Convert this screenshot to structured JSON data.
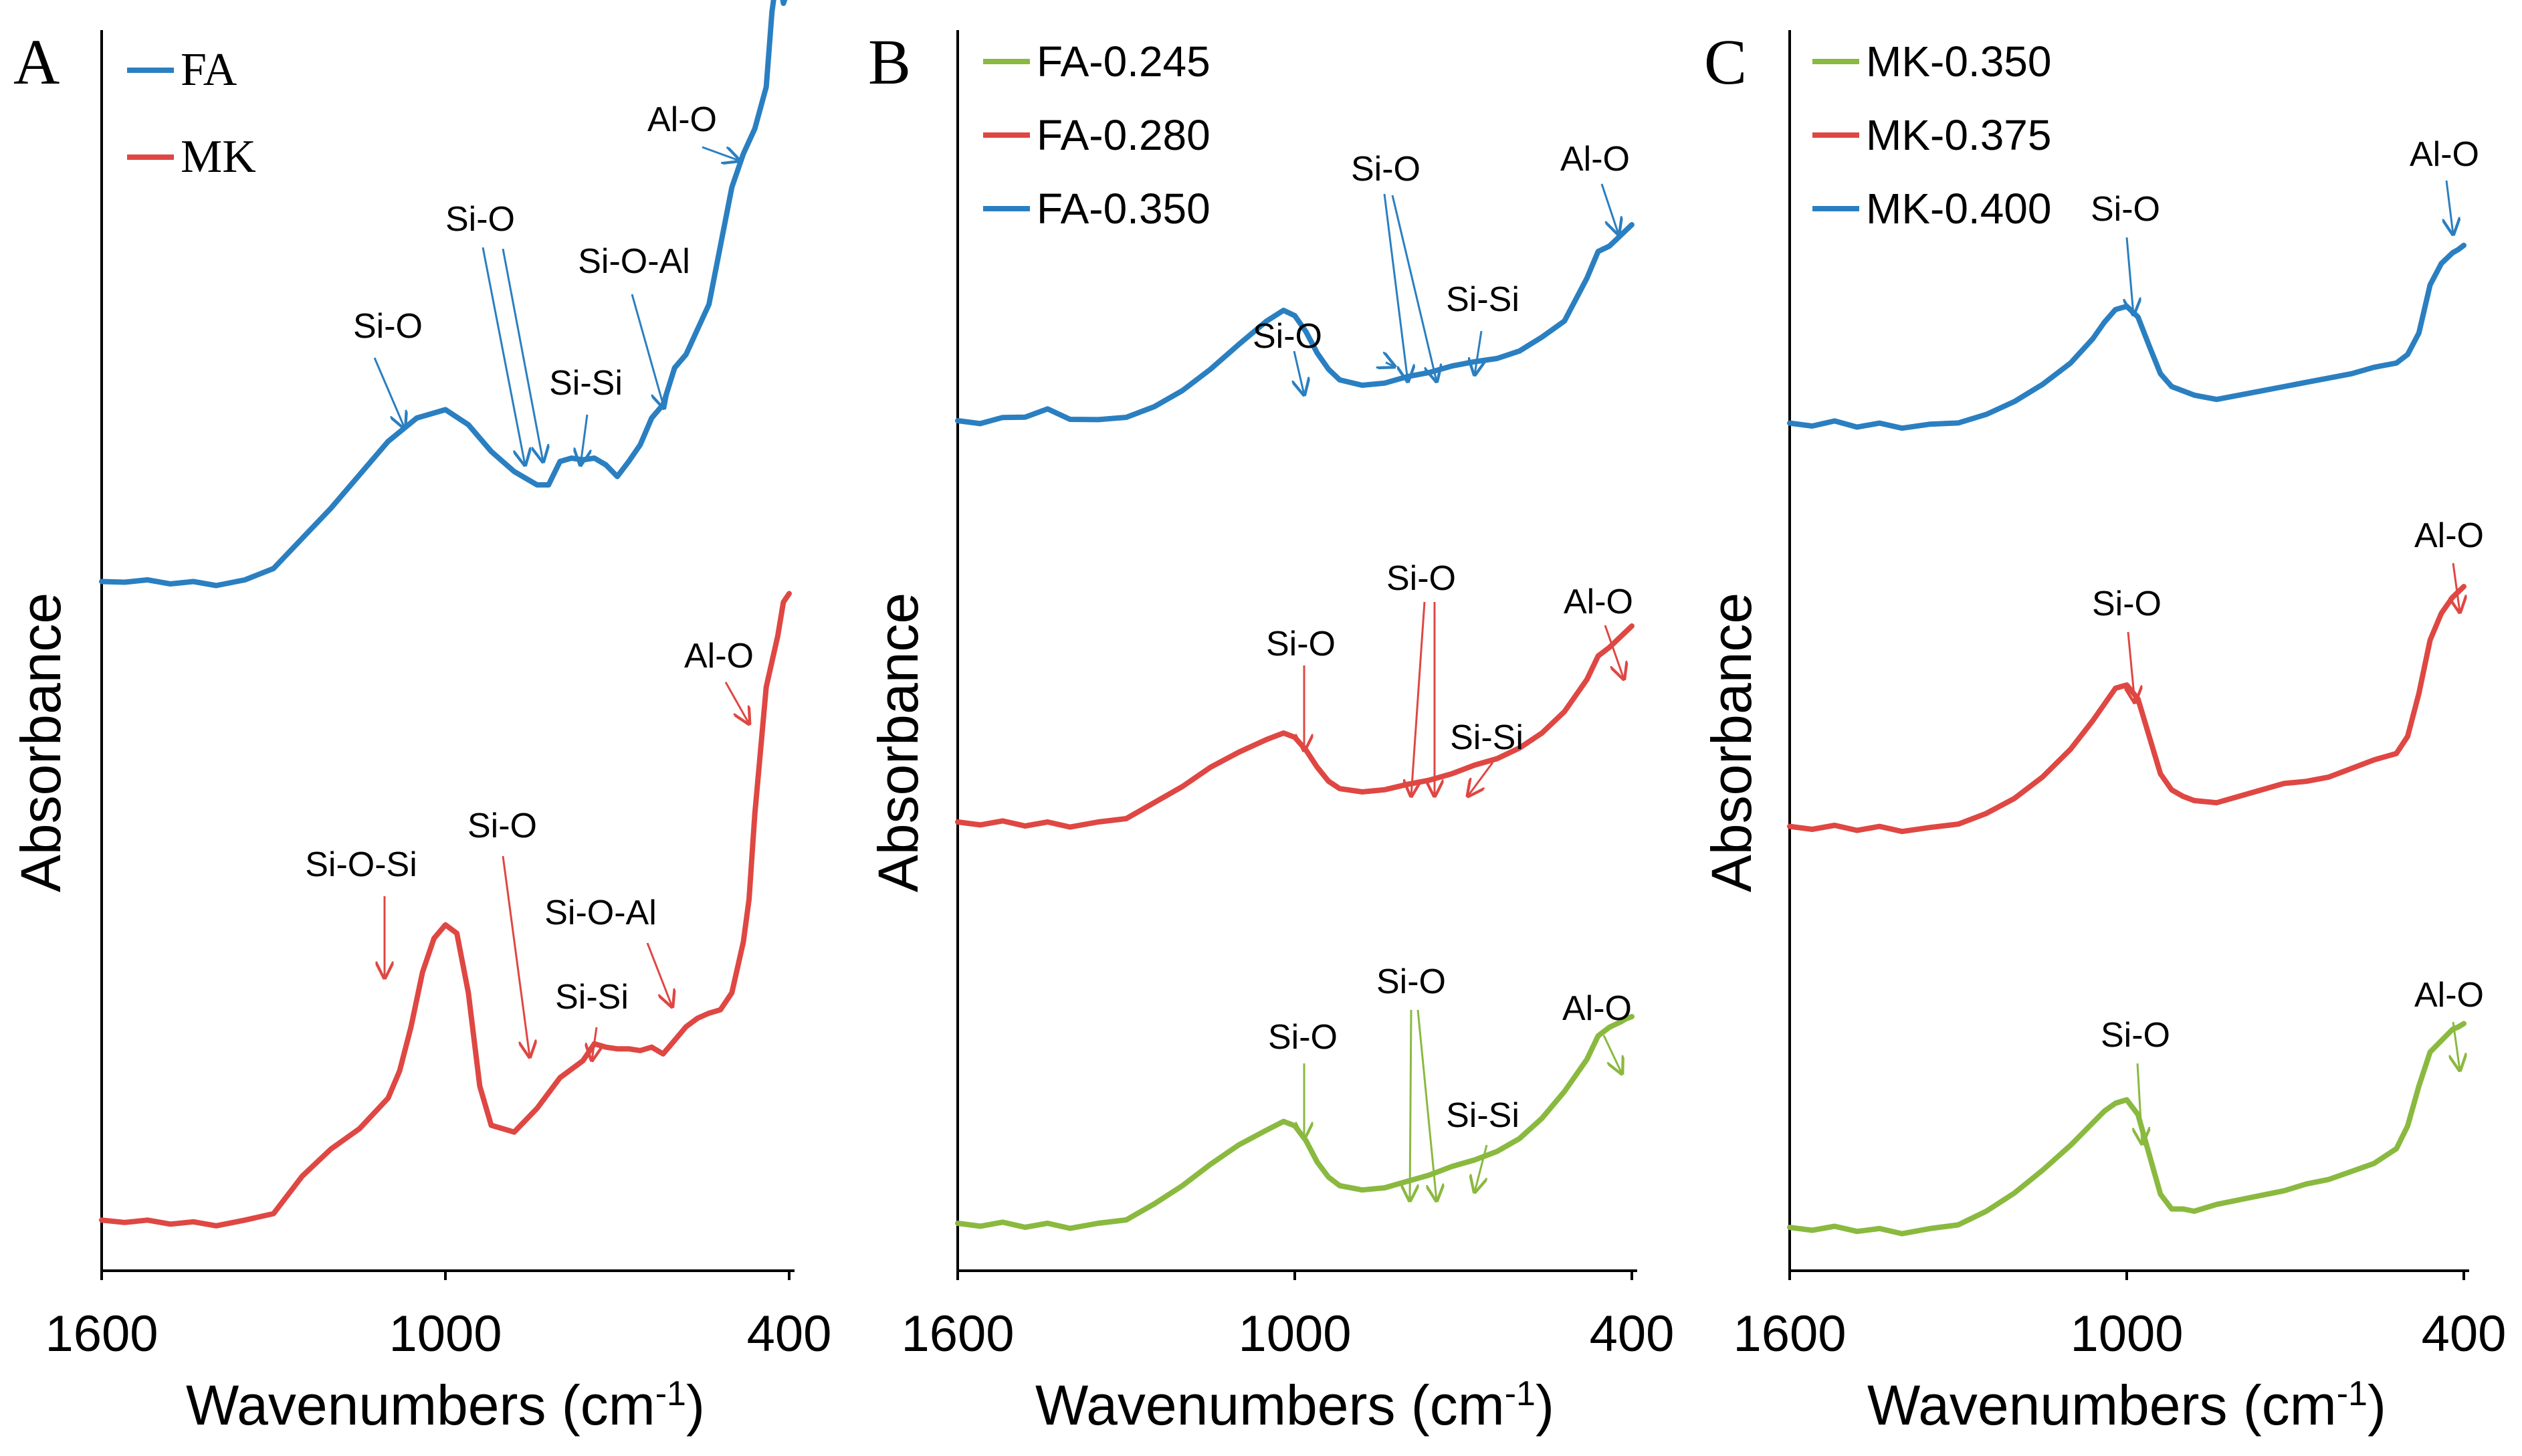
{
  "colors": {
    "green": "#8ab93f",
    "red": "#df4743",
    "blue": "#2a7fc1",
    "axis": "#000000"
  },
  "chart_data": [
    {
      "type": "line",
      "panel_label": "A",
      "xlabel": "Wavenumbers (cm",
      "xlabel_sup": "-1",
      "xlabel_end": ")",
      "ylabel": "Absorbance",
      "xlim": [
        1600,
        400
      ],
      "xticks": [
        "1600",
        "1000",
        "400"
      ],
      "legend": [
        "FA",
        "MK"
      ],
      "series": [
        {
          "name": "FA",
          "color": "blue",
          "offset": 2.0,
          "x": [
            1600,
            1560,
            1520,
            1480,
            1440,
            1400,
            1350,
            1300,
            1250,
            1200,
            1150,
            1100,
            1050,
            1000,
            960,
            920,
            880,
            860,
            840,
            820,
            800,
            780,
            760,
            740,
            720,
            700,
            680,
            660,
            640,
            620,
            600,
            580,
            560,
            540,
            520,
            500,
            480,
            460,
            440,
            430,
            420,
            410,
            400
          ],
          "y": [
            0.03,
            0.05,
            0.04,
            0.04,
            0.03,
            0.03,
            0.04,
            0.12,
            0.3,
            0.48,
            0.68,
            0.88,
            1.02,
            1.07,
            0.98,
            0.82,
            0.7,
            0.66,
            0.62,
            0.62,
            0.76,
            0.78,
            0.77,
            0.78,
            0.74,
            0.67,
            0.76,
            0.86,
            1.02,
            1.1,
            1.32,
            1.4,
            1.55,
            1.7,
            2.05,
            2.4,
            2.6,
            2.75,
            3.0,
            3.45,
            3.7,
            3.5,
            3.6
          ]
        },
        {
          "name": "MK",
          "color": "red",
          "offset": 0.0,
          "x": [
            1600,
            1560,
            1520,
            1480,
            1440,
            1400,
            1350,
            1300,
            1250,
            1200,
            1150,
            1100,
            1080,
            1060,
            1040,
            1020,
            1000,
            980,
            960,
            940,
            920,
            880,
            840,
            800,
            760,
            740,
            720,
            700,
            680,
            660,
            640,
            620,
            600,
            580,
            560,
            540,
            520,
            500,
            480,
            470,
            460,
            440,
            420,
            410,
            400
          ],
          "y": [
            0.05,
            0.06,
            0.05,
            0.05,
            0.04,
            0.04,
            0.05,
            0.1,
            0.32,
            0.48,
            0.6,
            0.78,
            0.94,
            1.2,
            1.52,
            1.72,
            1.8,
            1.75,
            1.4,
            0.85,
            0.62,
            0.58,
            0.72,
            0.9,
            1.0,
            1.1,
            1.08,
            1.07,
            1.07,
            1.06,
            1.08,
            1.04,
            1.12,
            1.2,
            1.25,
            1.28,
            1.3,
            1.4,
            1.7,
            1.95,
            2.45,
            3.2,
            3.5,
            3.7,
            3.75
          ]
        }
      ],
      "annotations": [
        {
          "text": "Al-O",
          "series": "FA"
        },
        {
          "text": "Si-O",
          "series": "FA"
        },
        {
          "text": "Si-O",
          "series": "FA"
        },
        {
          "text": "Si-O-Al",
          "series": "FA"
        },
        {
          "text": "Si-Si",
          "series": "FA"
        },
        {
          "text": "Al-O",
          "series": "MK"
        },
        {
          "text": "Si-O-Si",
          "series": "MK"
        },
        {
          "text": "Si-O",
          "series": "MK"
        },
        {
          "text": "Si-O-Al",
          "series": "MK"
        },
        {
          "text": "Si-Si",
          "series": "MK"
        }
      ]
    },
    {
      "type": "line",
      "panel_label": "B",
      "xlabel": "Wavenumbers (cm",
      "xlabel_sup": "-1",
      "xlabel_end": ")",
      "ylabel": "Absorbance",
      "xlim": [
        1600,
        400
      ],
      "xticks": [
        "1600",
        "1000",
        "400"
      ],
      "legend": [
        "FA-0.245",
        "FA-0.280",
        "FA-0.350"
      ],
      "series": [
        {
          "name": "FA-0.350",
          "color": "blue",
          "offset": 2.0,
          "x": [
            1600,
            1560,
            1520,
            1480,
            1440,
            1400,
            1350,
            1300,
            1250,
            1200,
            1150,
            1100,
            1050,
            1020,
            1000,
            980,
            960,
            940,
            920,
            880,
            840,
            800,
            760,
            720,
            680,
            640,
            600,
            560,
            520,
            480,
            460,
            440,
            420,
            410,
            400
          ],
          "y": [
            0.05,
            0.06,
            0.08,
            0.12,
            0.16,
            0.1,
            0.06,
            0.1,
            0.2,
            0.35,
            0.55,
            0.78,
            1.0,
            1.1,
            1.05,
            0.9,
            0.7,
            0.55,
            0.45,
            0.4,
            0.42,
            0.48,
            0.52,
            0.58,
            0.62,
            0.65,
            0.72,
            0.85,
            1.0,
            1.4,
            1.65,
            1.7,
            1.8,
            1.85,
            1.9
          ]
        },
        {
          "name": "FA-0.280",
          "color": "red",
          "offset": 1.0,
          "x": [
            1600,
            1560,
            1520,
            1480,
            1440,
            1400,
            1350,
            1300,
            1250,
            1200,
            1150,
            1100,
            1050,
            1020,
            1000,
            980,
            960,
            940,
            920,
            880,
            840,
            800,
            760,
            720,
            680,
            640,
            600,
            560,
            520,
            480,
            460,
            440,
            420,
            410,
            400
          ],
          "y": [
            0.05,
            0.06,
            0.06,
            0.05,
            0.05,
            0.04,
            0.05,
            0.1,
            0.25,
            0.4,
            0.58,
            0.72,
            0.84,
            0.9,
            0.86,
            0.74,
            0.58,
            0.45,
            0.38,
            0.35,
            0.37,
            0.42,
            0.46,
            0.52,
            0.6,
            0.66,
            0.76,
            0.9,
            1.1,
            1.4,
            1.62,
            1.7,
            1.8,
            1.85,
            1.9
          ]
        },
        {
          "name": "FA-0.245",
          "color": "green",
          "offset": 0.0,
          "x": [
            1600,
            1560,
            1520,
            1480,
            1440,
            1400,
            1350,
            1300,
            1250,
            1200,
            1150,
            1100,
            1050,
            1020,
            1000,
            980,
            960,
            940,
            920,
            880,
            840,
            800,
            760,
            720,
            680,
            640,
            600,
            560,
            520,
            480,
            460,
            440,
            420,
            410,
            400
          ],
          "y": [
            0.05,
            0.06,
            0.06,
            0.05,
            0.05,
            0.04,
            0.05,
            0.1,
            0.25,
            0.42,
            0.62,
            0.8,
            0.94,
            1.02,
            0.98,
            0.84,
            0.64,
            0.5,
            0.42,
            0.38,
            0.4,
            0.46,
            0.52,
            0.6,
            0.66,
            0.74,
            0.86,
            1.05,
            1.3,
            1.6,
            1.82,
            1.9,
            1.95,
            1.98,
            2.0
          ]
        }
      ],
      "annotations": [
        {
          "text": "Si-O",
          "series": "FA-0.350"
        },
        {
          "text": "Si-O",
          "series": "FA-0.350"
        },
        {
          "text": "Si-Si",
          "series": "FA-0.350"
        },
        {
          "text": "Al-O",
          "series": "FA-0.350"
        },
        {
          "text": "Si-O",
          "series": "FA-0.280"
        },
        {
          "text": "Si-O",
          "series": "FA-0.280"
        },
        {
          "text": "Si-Si",
          "series": "FA-0.280"
        },
        {
          "text": "Al-O",
          "series": "FA-0.280"
        },
        {
          "text": "Si-O",
          "series": "FA-0.245"
        },
        {
          "text": "Si-O",
          "series": "FA-0.245"
        },
        {
          "text": "Si-Si",
          "series": "FA-0.245"
        },
        {
          "text": "Al-O",
          "series": "FA-0.245"
        }
      ]
    },
    {
      "type": "line",
      "panel_label": "C",
      "xlabel": "Wavenumbers (cm",
      "xlabel_sup": "-1",
      "xlabel_end": ")",
      "ylabel": "Absorbance",
      "xlim": [
        1600,
        400
      ],
      "xticks": [
        "1600",
        "1000",
        "400"
      ],
      "legend": [
        "MK-0.350",
        "MK-0.375",
        "MK-0.400"
      ],
      "series": [
        {
          "name": "MK-0.400",
          "color": "blue",
          "offset": 2.0,
          "x": [
            1600,
            1560,
            1520,
            1480,
            1440,
            1400,
            1350,
            1300,
            1250,
            1200,
            1150,
            1100,
            1060,
            1040,
            1020,
            1000,
            980,
            960,
            940,
            920,
            900,
            880,
            840,
            800,
            760,
            720,
            680,
            640,
            600,
            560,
            520,
            500,
            480,
            460,
            440,
            420,
            410,
            400
          ],
          "y": [
            0.04,
            0.05,
            0.06,
            0.04,
            0.04,
            0.03,
            0.03,
            0.06,
            0.14,
            0.26,
            0.42,
            0.62,
            0.85,
            1.0,
            1.12,
            1.15,
            1.05,
            0.78,
            0.52,
            0.4,
            0.36,
            0.32,
            0.28,
            0.32,
            0.36,
            0.4,
            0.44,
            0.48,
            0.52,
            0.58,
            0.62,
            0.7,
            0.9,
            1.35,
            1.55,
            1.65,
            1.68,
            1.72
          ]
        },
        {
          "name": "MK-0.375",
          "color": "red",
          "offset": 1.0,
          "x": [
            1600,
            1560,
            1520,
            1480,
            1440,
            1400,
            1350,
            1300,
            1250,
            1200,
            1150,
            1100,
            1060,
            1040,
            1020,
            1000,
            980,
            960,
            940,
            920,
            900,
            880,
            840,
            800,
            760,
            720,
            680,
            640,
            600,
            560,
            520,
            500,
            480,
            460,
            440,
            420,
            410,
            400
          ],
          "y": [
            0.04,
            0.05,
            0.05,
            0.04,
            0.04,
            0.03,
            0.03,
            0.08,
            0.18,
            0.32,
            0.52,
            0.78,
            1.05,
            1.2,
            1.35,
            1.38,
            1.25,
            0.9,
            0.55,
            0.4,
            0.34,
            0.3,
            0.28,
            0.34,
            0.4,
            0.46,
            0.48,
            0.52,
            0.6,
            0.68,
            0.74,
            0.9,
            1.3,
            1.8,
            2.05,
            2.2,
            2.25,
            2.3
          ]
        },
        {
          "name": "MK-0.350",
          "color": "green",
          "offset": 0.0,
          "x": [
            1600,
            1560,
            1520,
            1480,
            1440,
            1400,
            1350,
            1300,
            1250,
            1200,
            1150,
            1100,
            1060,
            1040,
            1020,
            1000,
            980,
            960,
            940,
            920,
            900,
            880,
            840,
            800,
            760,
            720,
            680,
            640,
            600,
            560,
            520,
            500,
            480,
            460,
            440,
            420,
            410,
            400
          ],
          "y": [
            0.04,
            0.05,
            0.05,
            0.04,
            0.03,
            0.02,
            0.03,
            0.08,
            0.2,
            0.36,
            0.56,
            0.78,
            0.98,
            1.08,
            1.15,
            1.18,
            1.05,
            0.7,
            0.35,
            0.22,
            0.22,
            0.2,
            0.26,
            0.3,
            0.34,
            0.38,
            0.44,
            0.48,
            0.55,
            0.62,
            0.75,
            0.95,
            1.3,
            1.6,
            1.7,
            1.8,
            1.82,
            1.85
          ]
        }
      ],
      "annotations": [
        {
          "text": "Si-O",
          "series": "MK-0.400"
        },
        {
          "text": "Al-O",
          "series": "MK-0.400"
        },
        {
          "text": "Si-O",
          "series": "MK-0.375"
        },
        {
          "text": "Al-O",
          "series": "MK-0.375"
        },
        {
          "text": "Si-O",
          "series": "MK-0.350"
        },
        {
          "text": "Al-O",
          "series": "MK-0.350"
        }
      ]
    }
  ]
}
